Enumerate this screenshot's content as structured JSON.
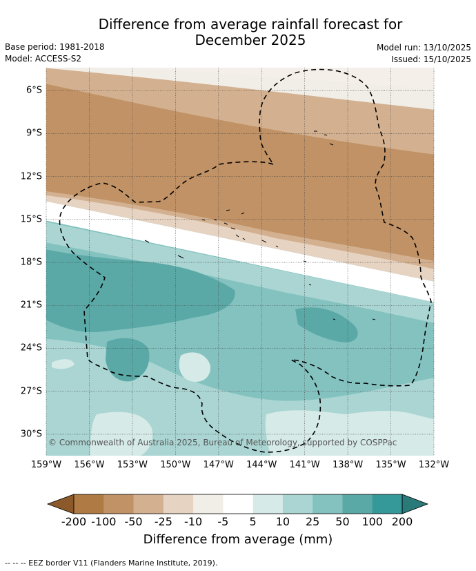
{
  "chart_data": {
    "type": "heatmap",
    "title": "Difference from average rainfall forecast for December 2025",
    "title_lines": [
      "Difference from average rainfall forecast for",
      "December 2025"
    ],
    "base_period": "Base period: 1981-2018",
    "model": "Model: ACCESS-S2",
    "model_run": "Model run: 13/10/2025",
    "issued": "Issued: 15/10/2025",
    "x_ticks": [
      "159°W",
      "156°W",
      "153°W",
      "150°W",
      "147°W",
      "144°W",
      "141°W",
      "138°W",
      "135°W",
      "132°W"
    ],
    "x_tick_values": [
      -159,
      -156,
      -153,
      -150,
      -147,
      -144,
      -141,
      -138,
      -135,
      -132
    ],
    "y_ticks": [
      "6°S",
      "9°S",
      "12°S",
      "15°S",
      "18°S",
      "21°S",
      "24°S",
      "27°S",
      "30°S"
    ],
    "y_tick_values": [
      -6,
      -9,
      -12,
      -15,
      -18,
      -21,
      -24,
      -27,
      -30
    ],
    "xlim": [
      -159,
      -132
    ],
    "ylim": [
      -31.5,
      -4.4
    ],
    "grid": true,
    "colorbar": {
      "label": "Difference from average (mm)",
      "boundaries": [
        "-200",
        "-100",
        "-50",
        "-25",
        "-10",
        "-5",
        "5",
        "10",
        "25",
        "50",
        "100",
        "200"
      ],
      "colors": [
        "#8c5a2a",
        "#b07a44",
        "#c19265",
        "#d3b190",
        "#e6d3c2",
        "#f1ede7",
        "#ffffff",
        "#d6eae8",
        "#aad5d2",
        "#84c2c0",
        "#5aa9a7",
        "#35999a",
        "#2b7a7a"
      ],
      "extend": "both"
    },
    "legend": "--  --  -- EEZ border V11 (Flanders Marine Institute, 2019).",
    "credit": "© Commonwealth of Australia 2025, Bureau of Meteorology, supported by COSPPac"
  }
}
